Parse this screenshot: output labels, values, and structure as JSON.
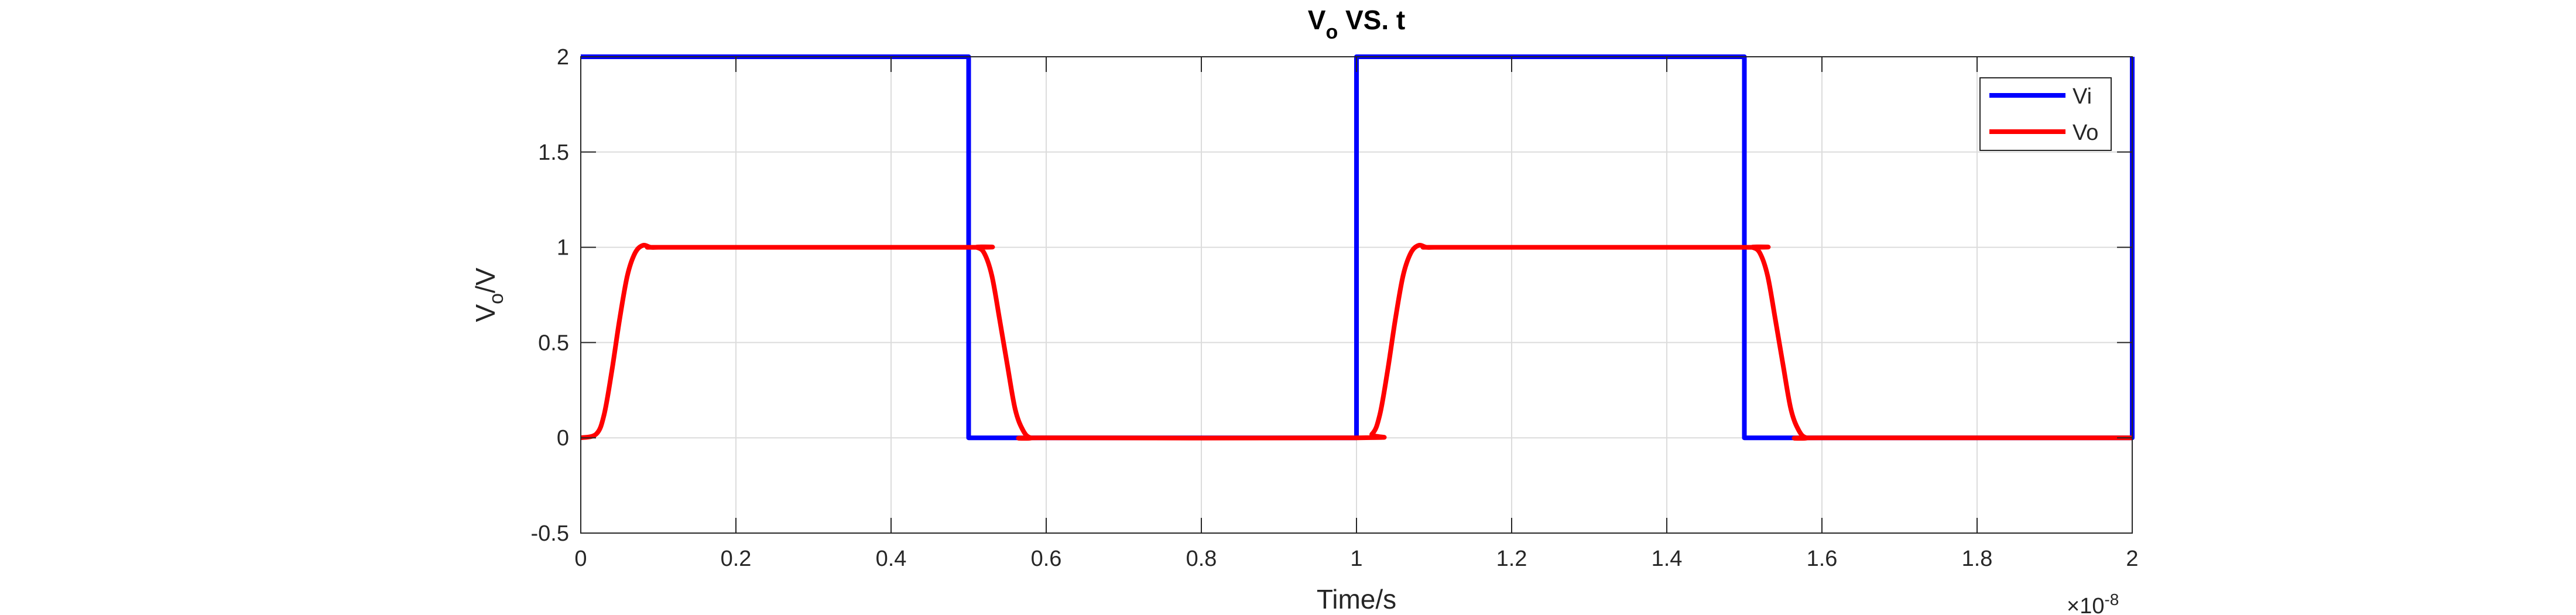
{
  "chart_data": {
    "type": "line",
    "title": {
      "main": "V",
      "sub": "o",
      "rest": " VS. t"
    },
    "xlabel": "Time/s",
    "ylabel": {
      "main": "V",
      "sub": "o",
      "rest": "/V"
    },
    "xlim": [
      0,
      2
    ],
    "ylim": [
      -0.5,
      2
    ],
    "x_exponent": {
      "base": "×10",
      "power": "-8"
    },
    "xticks": [
      0,
      0.2,
      0.4,
      0.6,
      0.8,
      1,
      1.2,
      1.4,
      1.6,
      1.8,
      2
    ],
    "xtick_labels": [
      "0",
      "0.2",
      "0.4",
      "0.6",
      "0.8",
      "1",
      "1.2",
      "1.4",
      "1.6",
      "1.8",
      "2"
    ],
    "yticks": [
      -0.5,
      0,
      0.5,
      1,
      1.5,
      2
    ],
    "ytick_labels": [
      "-0.5",
      "0",
      "0.5",
      "1",
      "1.5",
      "2"
    ],
    "grid": true,
    "legend_position": "top-right",
    "series": [
      {
        "name": "Vi",
        "color": "#0000ff",
        "x": [
          0,
          0.5,
          0.5,
          1.0,
          1.0,
          1.5,
          1.5,
          2.0,
          2.0
        ],
        "y": [
          2,
          2,
          0,
          0,
          2,
          2,
          0,
          0,
          2
        ]
      },
      {
        "name": "Vo",
        "color": "#ff0000",
        "x": [
          0,
          0.02,
          0.03,
          0.04,
          0.05,
          0.06,
          0.07,
          0.08,
          0.09,
          0.1,
          0.12,
          0.5,
          0.51,
          0.52,
          0.53,
          0.54,
          0.55,
          0.56,
          0.57,
          0.58,
          0.6,
          1.0,
          1.02,
          1.03,
          1.04,
          1.05,
          1.06,
          1.07,
          1.08,
          1.09,
          1.1,
          1.12,
          1.5,
          1.51,
          1.52,
          1.53,
          1.54,
          1.55,
          1.56,
          1.57,
          1.58,
          1.6,
          2.0
        ],
        "y": [
          0,
          0.02,
          0.12,
          0.35,
          0.62,
          0.85,
          0.97,
          1.01,
          1.0,
          1.0,
          1.0,
          1.0,
          1.0,
          0.97,
          0.85,
          0.62,
          0.38,
          0.15,
          0.04,
          0.0,
          0.0,
          0.0,
          0.02,
          0.12,
          0.35,
          0.62,
          0.85,
          0.97,
          1.01,
          1.0,
          1.0,
          1.0,
          1.0,
          1.0,
          0.97,
          0.85,
          0.62,
          0.38,
          0.15,
          0.04,
          0.0,
          0.0,
          0.0
        ]
      }
    ]
  }
}
